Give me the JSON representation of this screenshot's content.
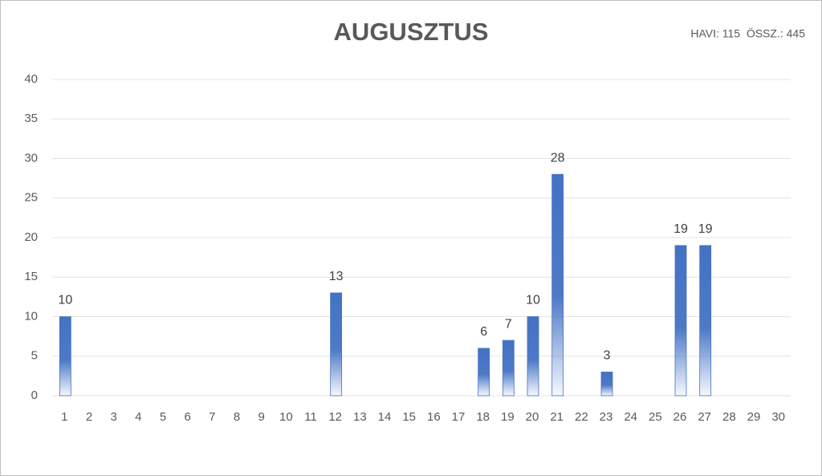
{
  "chart_data": {
    "type": "bar",
    "title": "AUGUSZTUS",
    "subtitle": "HAVI: 115  ÖSSZ.: 445",
    "categories": [
      "1",
      "2",
      "3",
      "4",
      "5",
      "6",
      "7",
      "8",
      "9",
      "10",
      "11",
      "12",
      "13",
      "14",
      "15",
      "16",
      "17",
      "18",
      "19",
      "20",
      "21",
      "22",
      "23",
      "24",
      "25",
      "26",
      "27",
      "28",
      "29",
      "30"
    ],
    "values": [
      10,
      null,
      null,
      null,
      null,
      null,
      null,
      null,
      null,
      null,
      null,
      13,
      null,
      null,
      null,
      null,
      null,
      6,
      7,
      10,
      28,
      null,
      3,
      null,
      null,
      19,
      19,
      null,
      null,
      null
    ],
    "color": "#4472c4",
    "ylim": [
      0,
      40
    ],
    "yticks": [
      0,
      5,
      10,
      15,
      20,
      25,
      30,
      35,
      40
    ],
    "grid": true
  }
}
